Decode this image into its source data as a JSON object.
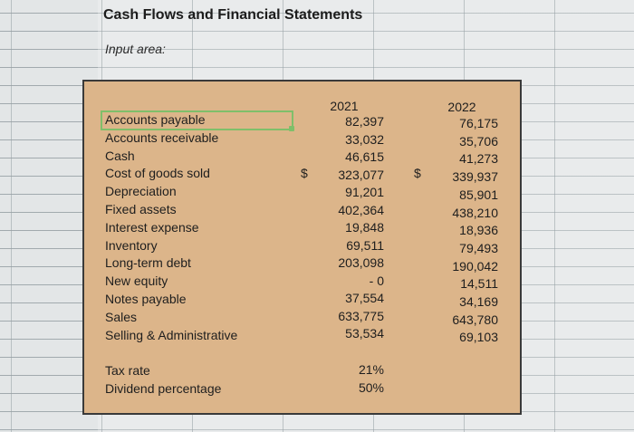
{
  "title": "Cash Flows and Financial Statements",
  "input_area_label": "Input area:",
  "years": [
    "2021",
    "2022"
  ],
  "currency_symbol": "$",
  "rows": [
    {
      "label": "Accounts payable",
      "v2021": "82,397",
      "v2022": "76,175"
    },
    {
      "label": "Accounts receivable",
      "v2021": "33,032",
      "v2022": "35,706"
    },
    {
      "label": "Cash",
      "v2021": "46,615",
      "v2022": "41,273"
    },
    {
      "label": "Cost of goods sold",
      "v2021": "323,077",
      "v2022": "339,937"
    },
    {
      "label": "Depreciation",
      "v2021": "91,201",
      "v2022": "85,901"
    },
    {
      "label": "Fixed assets",
      "v2021": "402,364",
      "v2022": "438,210"
    },
    {
      "label": "Interest expense",
      "v2021": "19,848",
      "v2022": "18,936"
    },
    {
      "label": "Inventory",
      "v2021": "69,511",
      "v2022": "79,493"
    },
    {
      "label": "Long-term debt",
      "v2021": "203,098",
      "v2022": "190,042"
    },
    {
      "label": "New equity",
      "v2021": "- 0",
      "v2022": "14,511"
    },
    {
      "label": "Notes payable",
      "v2021": "37,554",
      "v2022": "34,169"
    },
    {
      "label": "Sales",
      "v2021": "633,775",
      "v2022": "643,780"
    },
    {
      "label": "Selling & Administrative",
      "v2021": "53,534",
      "v2022": "69,103"
    }
  ],
  "tax_rate": {
    "label": "Tax rate",
    "value": "21%"
  },
  "dividend": {
    "label": "Dividend percentage",
    "value": "50%"
  },
  "colors": {
    "input_fill": "#dcb58a",
    "selection": "#7fbf6a"
  }
}
